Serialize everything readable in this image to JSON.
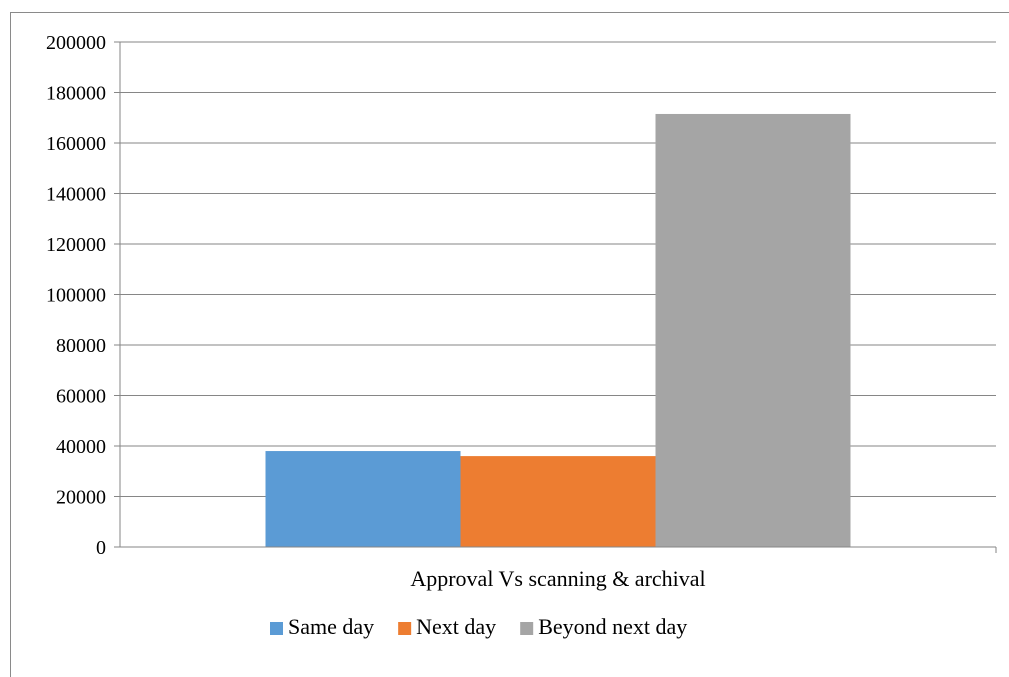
{
  "chart_data": {
    "type": "bar",
    "categories": [
      "Approval Vs scanning & archival"
    ],
    "series": [
      {
        "name": "Same day",
        "values": [
          38000
        ],
        "color": "#5b9bd5"
      },
      {
        "name": "Next day",
        "values": [
          36000
        ],
        "color": "#ed7d31"
      },
      {
        "name": "Beyond next day",
        "values": [
          171500
        ],
        "color": "#a5a5a5"
      }
    ],
    "ylim": [
      0,
      200000
    ],
    "yticks": [
      0,
      20000,
      40000,
      60000,
      80000,
      100000,
      120000,
      140000,
      160000,
      180000,
      200000
    ],
    "grid": true,
    "legend": "bottom",
    "title": "",
    "xlabel": "",
    "ylabel": ""
  }
}
